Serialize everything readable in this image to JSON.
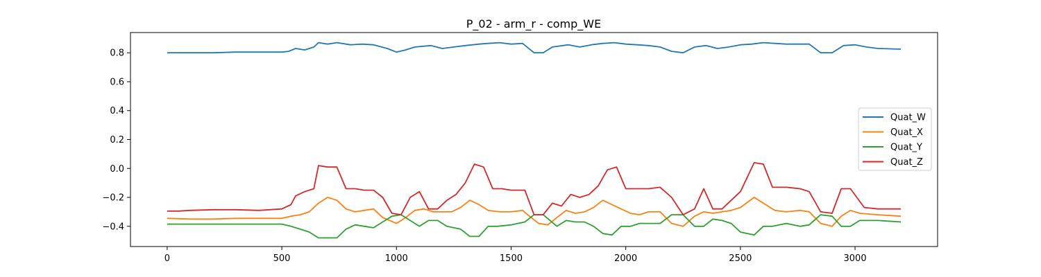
{
  "chart_data": {
    "type": "line",
    "title": "P_02 - arm_r - comp_WE",
    "xlabel": "",
    "ylabel": "",
    "xlim": [
      -160,
      3360
    ],
    "ylim": [
      -0.54,
      0.94
    ],
    "xticks": [
      0,
      500,
      1000,
      1500,
      2000,
      2500,
      3000
    ],
    "xtick_labels": [
      "0",
      "500",
      "1000",
      "1500",
      "2000",
      "2500",
      "3000"
    ],
    "yticks": [
      0.8,
      0.6,
      0.4,
      0.2,
      0.0,
      -0.2,
      -0.4
    ],
    "ytick_labels": [
      "0.8",
      "0.6",
      "0.4",
      "0.2",
      "0.0",
      "−0.2",
      "−0.4"
    ],
    "grid": false,
    "legend_position": "center-right",
    "series": [
      {
        "name": "Quat_W",
        "color": "#1f77b4",
        "points": [
          [
            0,
            0.8
          ],
          [
            100,
            0.8
          ],
          [
            200,
            0.8
          ],
          [
            300,
            0.805
          ],
          [
            400,
            0.805
          ],
          [
            500,
            0.805
          ],
          [
            530,
            0.81
          ],
          [
            560,
            0.83
          ],
          [
            600,
            0.82
          ],
          [
            640,
            0.84
          ],
          [
            660,
            0.87
          ],
          [
            700,
            0.86
          ],
          [
            740,
            0.87
          ],
          [
            800,
            0.855
          ],
          [
            850,
            0.86
          ],
          [
            900,
            0.855
          ],
          [
            960,
            0.83
          ],
          [
            1000,
            0.805
          ],
          [
            1040,
            0.82
          ],
          [
            1080,
            0.84
          ],
          [
            1150,
            0.85
          ],
          [
            1200,
            0.83
          ],
          [
            1250,
            0.84
          ],
          [
            1300,
            0.85
          ],
          [
            1360,
            0.86
          ],
          [
            1400,
            0.865
          ],
          [
            1450,
            0.87
          ],
          [
            1500,
            0.86
          ],
          [
            1550,
            0.865
          ],
          [
            1600,
            0.8
          ],
          [
            1640,
            0.8
          ],
          [
            1680,
            0.84
          ],
          [
            1750,
            0.855
          ],
          [
            1800,
            0.84
          ],
          [
            1850,
            0.855
          ],
          [
            1900,
            0.865
          ],
          [
            1950,
            0.87
          ],
          [
            2000,
            0.86
          ],
          [
            2050,
            0.855
          ],
          [
            2100,
            0.85
          ],
          [
            2150,
            0.84
          ],
          [
            2200,
            0.81
          ],
          [
            2250,
            0.8
          ],
          [
            2300,
            0.84
          ],
          [
            2350,
            0.85
          ],
          [
            2400,
            0.83
          ],
          [
            2450,
            0.84
          ],
          [
            2500,
            0.855
          ],
          [
            2550,
            0.86
          ],
          [
            2600,
            0.87
          ],
          [
            2650,
            0.865
          ],
          [
            2700,
            0.86
          ],
          [
            2800,
            0.86
          ],
          [
            2850,
            0.8
          ],
          [
            2900,
            0.8
          ],
          [
            2950,
            0.85
          ],
          [
            3000,
            0.855
          ],
          [
            3050,
            0.84
          ],
          [
            3100,
            0.83
          ],
          [
            3200,
            0.825
          ]
        ]
      },
      {
        "name": "Quat_X",
        "color": "#ff7f0e",
        "points": [
          [
            0,
            -0.345
          ],
          [
            100,
            -0.35
          ],
          [
            200,
            -0.35
          ],
          [
            300,
            -0.345
          ],
          [
            400,
            -0.345
          ],
          [
            500,
            -0.345
          ],
          [
            540,
            -0.33
          ],
          [
            580,
            -0.32
          ],
          [
            620,
            -0.3
          ],
          [
            660,
            -0.24
          ],
          [
            700,
            -0.2
          ],
          [
            740,
            -0.22
          ],
          [
            780,
            -0.28
          ],
          [
            820,
            -0.3
          ],
          [
            860,
            -0.29
          ],
          [
            900,
            -0.28
          ],
          [
            940,
            -0.34
          ],
          [
            1000,
            -0.38
          ],
          [
            1040,
            -0.34
          ],
          [
            1080,
            -0.29
          ],
          [
            1120,
            -0.28
          ],
          [
            1160,
            -0.3
          ],
          [
            1200,
            -0.3
          ],
          [
            1240,
            -0.3
          ],
          [
            1280,
            -0.27
          ],
          [
            1320,
            -0.22
          ],
          [
            1360,
            -0.25
          ],
          [
            1400,
            -0.29
          ],
          [
            1450,
            -0.3
          ],
          [
            1500,
            -0.3
          ],
          [
            1550,
            -0.29
          ],
          [
            1580,
            -0.33
          ],
          [
            1620,
            -0.38
          ],
          [
            1660,
            -0.39
          ],
          [
            1700,
            -0.34
          ],
          [
            1740,
            -0.29
          ],
          [
            1780,
            -0.31
          ],
          [
            1820,
            -0.3
          ],
          [
            1860,
            -0.27
          ],
          [
            1900,
            -0.22
          ],
          [
            1940,
            -0.25
          ],
          [
            1980,
            -0.28
          ],
          [
            2020,
            -0.31
          ],
          [
            2060,
            -0.32
          ],
          [
            2100,
            -0.3
          ],
          [
            2150,
            -0.3
          ],
          [
            2200,
            -0.38
          ],
          [
            2250,
            -0.4
          ],
          [
            2300,
            -0.33
          ],
          [
            2340,
            -0.3
          ],
          [
            2380,
            -0.31
          ],
          [
            2420,
            -0.3
          ],
          [
            2460,
            -0.29
          ],
          [
            2500,
            -0.27
          ],
          [
            2560,
            -0.2
          ],
          [
            2600,
            -0.24
          ],
          [
            2650,
            -0.29
          ],
          [
            2700,
            -0.3
          ],
          [
            2760,
            -0.29
          ],
          [
            2800,
            -0.3
          ],
          [
            2850,
            -0.38
          ],
          [
            2900,
            -0.4
          ],
          [
            2940,
            -0.33
          ],
          [
            2980,
            -0.29
          ],
          [
            3020,
            -0.31
          ],
          [
            3100,
            -0.32
          ],
          [
            3200,
            -0.33
          ]
        ]
      },
      {
        "name": "Quat_Y",
        "color": "#2ca02c",
        "points": [
          [
            0,
            -0.385
          ],
          [
            100,
            -0.385
          ],
          [
            200,
            -0.385
          ],
          [
            300,
            -0.385
          ],
          [
            400,
            -0.385
          ],
          [
            500,
            -0.385
          ],
          [
            540,
            -0.4
          ],
          [
            580,
            -0.42
          ],
          [
            620,
            -0.44
          ],
          [
            660,
            -0.48
          ],
          [
            700,
            -0.48
          ],
          [
            740,
            -0.48
          ],
          [
            780,
            -0.42
          ],
          [
            820,
            -0.39
          ],
          [
            860,
            -0.4
          ],
          [
            900,
            -0.41
          ],
          [
            940,
            -0.37
          ],
          [
            980,
            -0.33
          ],
          [
            1020,
            -0.32
          ],
          [
            1060,
            -0.36
          ],
          [
            1100,
            -0.4
          ],
          [
            1140,
            -0.36
          ],
          [
            1180,
            -0.36
          ],
          [
            1220,
            -0.4
          ],
          [
            1280,
            -0.42
          ],
          [
            1320,
            -0.47
          ],
          [
            1360,
            -0.47
          ],
          [
            1400,
            -0.4
          ],
          [
            1440,
            -0.4
          ],
          [
            1500,
            -0.39
          ],
          [
            1560,
            -0.37
          ],
          [
            1600,
            -0.32
          ],
          [
            1640,
            -0.32
          ],
          [
            1700,
            -0.4
          ],
          [
            1740,
            -0.36
          ],
          [
            1780,
            -0.37
          ],
          [
            1820,
            -0.37
          ],
          [
            1860,
            -0.4
          ],
          [
            1900,
            -0.45
          ],
          [
            1940,
            -0.46
          ],
          [
            1980,
            -0.4
          ],
          [
            2020,
            -0.4
          ],
          [
            2060,
            -0.38
          ],
          [
            2100,
            -0.38
          ],
          [
            2150,
            -0.38
          ],
          [
            2200,
            -0.32
          ],
          [
            2250,
            -0.32
          ],
          [
            2300,
            -0.4
          ],
          [
            2340,
            -0.4
          ],
          [
            2380,
            -0.35
          ],
          [
            2420,
            -0.36
          ],
          [
            2460,
            -0.38
          ],
          [
            2500,
            -0.44
          ],
          [
            2560,
            -0.46
          ],
          [
            2600,
            -0.4
          ],
          [
            2640,
            -0.4
          ],
          [
            2700,
            -0.38
          ],
          [
            2760,
            -0.4
          ],
          [
            2800,
            -0.39
          ],
          [
            2850,
            -0.32
          ],
          [
            2900,
            -0.33
          ],
          [
            2940,
            -0.4
          ],
          [
            2980,
            -0.4
          ],
          [
            3020,
            -0.36
          ],
          [
            3100,
            -0.36
          ],
          [
            3200,
            -0.37
          ]
        ]
      },
      {
        "name": "Quat_Z",
        "color": "#d62728",
        "points": [
          [
            0,
            -0.295
          ],
          [
            50,
            -0.295
          ],
          [
            100,
            -0.29
          ],
          [
            200,
            -0.285
          ],
          [
            300,
            -0.285
          ],
          [
            400,
            -0.29
          ],
          [
            500,
            -0.28
          ],
          [
            540,
            -0.25
          ],
          [
            560,
            -0.19
          ],
          [
            600,
            -0.16
          ],
          [
            640,
            -0.14
          ],
          [
            660,
            0.02
          ],
          [
            700,
            0.01
          ],
          [
            740,
            0.01
          ],
          [
            780,
            -0.14
          ],
          [
            820,
            -0.14
          ],
          [
            860,
            -0.15
          ],
          [
            900,
            -0.15
          ],
          [
            940,
            -0.2
          ],
          [
            980,
            -0.31
          ],
          [
            1020,
            -0.32
          ],
          [
            1060,
            -0.2
          ],
          [
            1100,
            -0.16
          ],
          [
            1140,
            -0.28
          ],
          [
            1180,
            -0.28
          ],
          [
            1220,
            -0.22
          ],
          [
            1260,
            -0.18
          ],
          [
            1300,
            -0.1
          ],
          [
            1340,
            0.03
          ],
          [
            1380,
            0.01
          ],
          [
            1420,
            -0.14
          ],
          [
            1460,
            -0.14
          ],
          [
            1500,
            -0.15
          ],
          [
            1560,
            -0.15
          ],
          [
            1600,
            -0.32
          ],
          [
            1640,
            -0.32
          ],
          [
            1680,
            -0.24
          ],
          [
            1720,
            -0.26
          ],
          [
            1760,
            -0.18
          ],
          [
            1800,
            -0.2
          ],
          [
            1840,
            -0.18
          ],
          [
            1880,
            -0.12
          ],
          [
            1920,
            -0.01
          ],
          [
            1960,
            0.01
          ],
          [
            2000,
            -0.14
          ],
          [
            2040,
            -0.14
          ],
          [
            2100,
            -0.14
          ],
          [
            2150,
            -0.13
          ],
          [
            2200,
            -0.2
          ],
          [
            2250,
            -0.32
          ],
          [
            2300,
            -0.28
          ],
          [
            2340,
            -0.14
          ],
          [
            2380,
            -0.28
          ],
          [
            2420,
            -0.28
          ],
          [
            2460,
            -0.22
          ],
          [
            2500,
            -0.16
          ],
          [
            2560,
            0.04
          ],
          [
            2600,
            0.03
          ],
          [
            2640,
            -0.13
          ],
          [
            2700,
            -0.13
          ],
          [
            2760,
            -0.14
          ],
          [
            2800,
            -0.16
          ],
          [
            2850,
            -0.3
          ],
          [
            2900,
            -0.31
          ],
          [
            2940,
            -0.14
          ],
          [
            2980,
            -0.14
          ],
          [
            3040,
            -0.27
          ],
          [
            3100,
            -0.28
          ],
          [
            3200,
            -0.28
          ]
        ]
      }
    ]
  }
}
